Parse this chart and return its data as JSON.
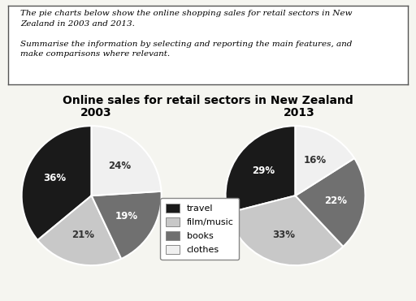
{
  "title": "Online sales for retail sectors in New Zealand",
  "subtitle_2003": "2003",
  "subtitle_2013": "2013",
  "description_line1": "The pie charts below show the online shopping sales for retail sectors in New",
  "description_line2": "Zealand in 2003 and 2013.",
  "description_line3": "Summarise the information by selecting and reporting the main features, and",
  "description_line4": "make comparisons where relevant.",
  "categories": [
    "travel",
    "film/music",
    "books",
    "clothes"
  ],
  "colors": [
    "#1a1a1a",
    "#c8c8c8",
    "#707070",
    "#f0f0f0"
  ],
  "data_2003": [
    36,
    21,
    19,
    24
  ],
  "data_2013": [
    29,
    33,
    22,
    16
  ],
  "startangle_2003": 90,
  "startangle_2013": 90,
  "bg_color": "#f5f5f0",
  "box_color": "#ffffff"
}
